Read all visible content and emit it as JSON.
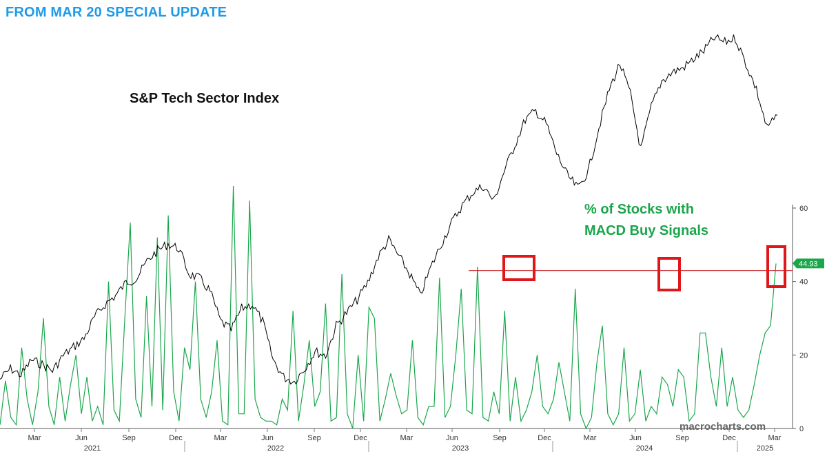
{
  "header": {
    "banner": "FROM MAR 20 SPECIAL UPDATE"
  },
  "watermark": "macrocharts.com",
  "colors": {
    "banner": "#1e9be8",
    "index_line": "#000000",
    "macd_line": "#1aa64b",
    "highlight": "#e0161b",
    "reference_line": "#c8171c",
    "last_value_tag": "#1aa64b"
  },
  "chart_data": {
    "type": "line",
    "x_axis": {
      "months": [
        "Mar",
        "Jun",
        "Sep",
        "Dec",
        "Mar",
        "Jun",
        "Sep",
        "Dec",
        "Mar",
        "Jun",
        "Sep",
        "Dec",
        "Mar",
        "Jun",
        "Sep",
        "Dec",
        "Mar"
      ],
      "years": [
        "2021",
        "2022",
        "2023",
        "2024",
        "2025"
      ],
      "range": [
        "2021-01",
        "2025-03-20"
      ]
    },
    "right_axis": {
      "ticks": [
        "60",
        "40",
        "20",
        "0"
      ],
      "ylim": [
        0,
        60
      ]
    },
    "series": [
      {
        "name": "S&P Tech Sector Index",
        "axis": "unlabeled (price)",
        "relative_level_0_to_1": [
          0.03,
          0.08,
          0.05,
          0.12,
          0.1,
          0.07,
          0.14,
          0.18,
          0.22,
          0.32,
          0.38,
          0.42,
          0.48,
          0.5,
          0.58,
          0.63,
          0.66,
          0.64,
          0.52,
          0.5,
          0.44,
          0.3,
          0.26,
          0.36,
          0.38,
          0.3,
          0.12,
          0.04,
          0.02,
          0.08,
          0.16,
          0.14,
          0.28,
          0.34,
          0.4,
          0.48,
          0.6,
          0.68,
          0.6,
          0.52,
          0.42,
          0.55,
          0.66,
          0.76,
          0.84,
          0.9,
          0.93,
          0.86,
          1.0,
          1.12,
          1.24,
          1.28,
          1.22,
          1.08,
          0.98,
          0.92,
          1.0,
          1.2,
          1.38,
          1.5,
          1.36,
          1.1,
          1.3,
          1.42,
          1.46,
          1.48,
          1.52,
          1.56,
          1.62,
          1.6,
          1.62,
          1.5,
          1.38,
          1.2,
          1.26
        ],
        "color": "#000000"
      },
      {
        "name": "% of Stocks with MACD Buy Signals",
        "axis": "right",
        "values": [
          1,
          13,
          3,
          1,
          22,
          8,
          1,
          10,
          30,
          6,
          1,
          14,
          2,
          12,
          20,
          4,
          14,
          2,
          6,
          1,
          40,
          5,
          2,
          30,
          56,
          8,
          3,
          36,
          6,
          52,
          5,
          58,
          10,
          2,
          22,
          16,
          40,
          8,
          3,
          10,
          24,
          2,
          1,
          66,
          4,
          4,
          62,
          8,
          3,
          2,
          2,
          1,
          8,
          5,
          32,
          2,
          12,
          24,
          6,
          10,
          34,
          2,
          3,
          42,
          4,
          0,
          20,
          2,
          33,
          30,
          2,
          8,
          15,
          9,
          4,
          5,
          24,
          3,
          1,
          6,
          6,
          41,
          3,
          6,
          20,
          38,
          5,
          4,
          44,
          3,
          2,
          10,
          4,
          32,
          2,
          14,
          2,
          5,
          10,
          20,
          6,
          4,
          8,
          18,
          10,
          2,
          38,
          4,
          0,
          3,
          18,
          28,
          4,
          1,
          4,
          22,
          2,
          4,
          16,
          2,
          6,
          4,
          14,
          12,
          6,
          16,
          14,
          2,
          4,
          26,
          26,
          14,
          6,
          22,
          6,
          14,
          5,
          3,
          5,
          12,
          20,
          26,
          28,
          44.93
        ],
        "color": "#1aa64b"
      }
    ],
    "reference_level": 43,
    "last_value": "44.93",
    "highlighted_peaks": [
      "2023-10",
      "2024-08",
      "2025-03"
    ]
  }
}
